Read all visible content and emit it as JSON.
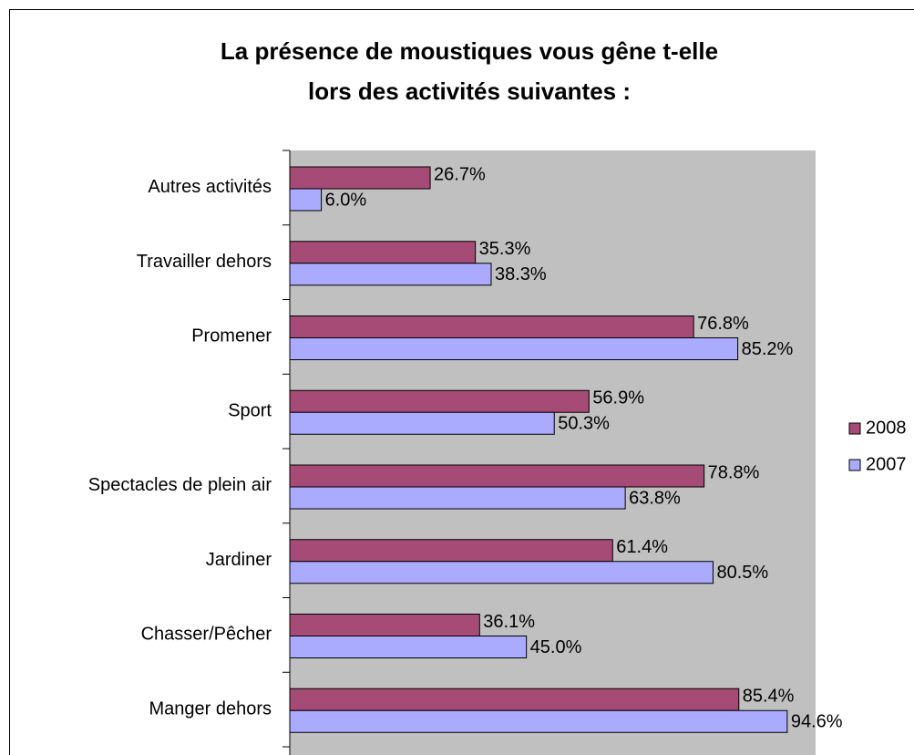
{
  "chart_data": {
    "type": "bar",
    "orientation": "horizontal",
    "title": "La présence de moustiques vous gêne t-elle lors des activités suivantes :",
    "categories": [
      "Autres activités",
      "Travailler dehors",
      "Promener",
      "Sport",
      "Spectacles de plein air",
      "Jardiner",
      "Chasser/Pêcher",
      "Manger dehors"
    ],
    "series": [
      {
        "name": "2008",
        "color": "#a64b76",
        "values": [
          26.7,
          35.3,
          76.8,
          56.9,
          78.8,
          61.4,
          36.1,
          85.4
        ],
        "value_labels": [
          "26.7%",
          "35.3%",
          "76.8%",
          "56.9%",
          "78.8%",
          "61.4%",
          "36.1%",
          "85.4%"
        ]
      },
      {
        "name": "2007",
        "color": "#aaaaff",
        "values": [
          6.0,
          38.3,
          85.2,
          50.3,
          63.8,
          80.5,
          45.0,
          94.6
        ],
        "value_labels": [
          "6.0%",
          "38.3%",
          "85.2%",
          "50.3%",
          "63.8%",
          "80.5%",
          "45.0%",
          "94.6%"
        ]
      }
    ],
    "xlim": [
      0,
      100
    ],
    "legend": "right",
    "plot_background": "#c0c0c0"
  }
}
